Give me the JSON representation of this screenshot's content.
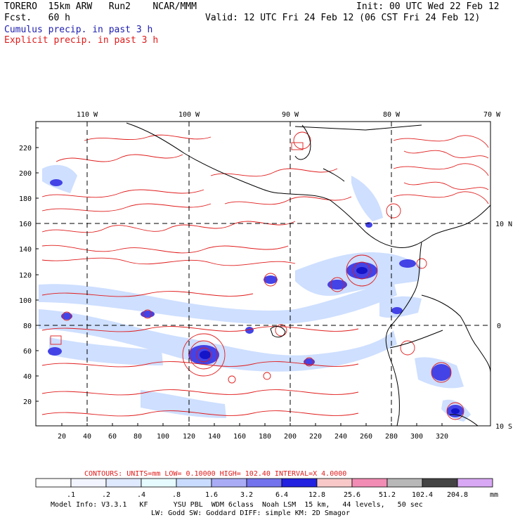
{
  "header": {
    "left1": "TORERO  15km ARW   Run2    NCAR/MMM",
    "left2": "Fcst.   60 h",
    "init": "Init: 00 UTC Wed 22 Feb 12",
    "valid": "Valid: 12 UTC Fri 24 Feb 12 (06 CST Fri 24 Feb 12)",
    "legend_cumulus": "Cumulus precip. in past 3 h",
    "legend_explicit": "Explicit precip. in past 3 h"
  },
  "map": {
    "lon_labels": [
      "110 W",
      "100 W",
      "90 W",
      "80 W",
      "70 W"
    ],
    "lat_labels": [
      "10 N",
      "0",
      "10 S"
    ],
    "x_ticks": [
      "20",
      "40",
      "60",
      "80",
      "100",
      "120",
      "140",
      "160",
      "180",
      "200",
      "220",
      "240",
      "260",
      "280",
      "300",
      "320"
    ],
    "y_ticks": [
      "20",
      "40",
      "60",
      "80",
      "100",
      "120",
      "140",
      "160",
      "180",
      "200",
      "220"
    ]
  },
  "contours": {
    "label": "CONTOURS:  UNITS=mm  LOW= 0.10000      HIGH=  102.40      INTERVAL=X  4.0000"
  },
  "colorbar": {
    "labels": [
      ".1",
      ".2",
      ".4",
      ".8",
      "1.6",
      "3.2",
      "6.4",
      "12.8",
      "25.6",
      "51.2",
      "102.4",
      "204.8"
    ],
    "unit": "mm",
    "colors": [
      "#ffffff",
      "#f2f5ff",
      "#dfe9ff",
      "#e6fbff",
      "#c9dcff",
      "#a9acf5",
      "#7373ee",
      "#2222e0",
      "#f8c8c8",
      "#f28cb5",
      "#b8b8b8",
      "#444444",
      "#d8a8f4"
    ]
  },
  "footer": {
    "line1": "Model Info: V3.3.1   KF      YSU PBL  WDM 6class  Noah LSM  15 km,   44 levels,   50 sec",
    "line2": "LW: Godd SW: Goddard DIFF: simple KM: 2D Smagor"
  }
}
